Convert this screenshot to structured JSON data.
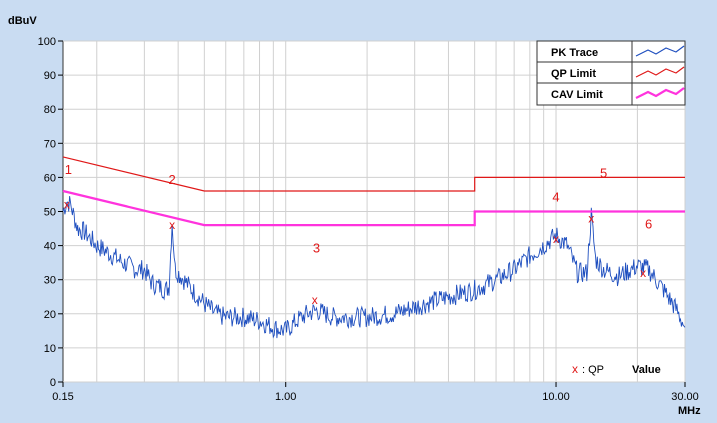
{
  "chart_data": {
    "type": "line",
    "ylabel": "dBuV",
    "xlabel": "MHz",
    "x_scale": "log",
    "xlim": [
      0.15,
      30
    ],
    "ylim": [
      0,
      100
    ],
    "y_ticks": [
      0,
      10,
      20,
      30,
      40,
      50,
      60,
      70,
      80,
      90,
      100
    ],
    "x_ticks": [
      {
        "value": 0.15,
        "label": "0.15"
      },
      {
        "value": 1,
        "label": "1.00"
      },
      {
        "value": 10,
        "label": "10.00"
      },
      {
        "value": 30,
        "label": "30.00"
      }
    ],
    "grid": true,
    "legend_position": "top-right",
    "legend": [
      "PK Trace",
      "QP Limit",
      "CAV Limit"
    ],
    "series": [
      {
        "name": "PK Trace",
        "color": "#1f4fbf",
        "points": [
          [
            0.15,
            50
          ],
          [
            0.155,
            53
          ],
          [
            0.16,
            52
          ],
          [
            0.17,
            45
          ],
          [
            0.18,
            44
          ],
          [
            0.2,
            40
          ],
          [
            0.22,
            38
          ],
          [
            0.25,
            35
          ],
          [
            0.28,
            33
          ],
          [
            0.3,
            33
          ],
          [
            0.32,
            29
          ],
          [
            0.34,
            28
          ],
          [
            0.36,
            27
          ],
          [
            0.37,
            28
          ],
          [
            0.38,
            47
          ],
          [
            0.39,
            33
          ],
          [
            0.42,
            30
          ],
          [
            0.45,
            27
          ],
          [
            0.5,
            23
          ],
          [
            0.55,
            20
          ],
          [
            0.6,
            19
          ],
          [
            0.7,
            19
          ],
          [
            0.8,
            18
          ],
          [
            0.9,
            16
          ],
          [
            1.0,
            15
          ],
          [
            1.1,
            18
          ],
          [
            1.2,
            20
          ],
          [
            1.3,
            21
          ],
          [
            1.5,
            19
          ],
          [
            2.0,
            19
          ],
          [
            2.5,
            20
          ],
          [
            3.0,
            22
          ],
          [
            4.0,
            25
          ],
          [
            5.0,
            27
          ],
          [
            6.0,
            30
          ],
          [
            7.0,
            33
          ],
          [
            8.0,
            37
          ],
          [
            9.0,
            40
          ],
          [
            10.0,
            43
          ],
          [
            11.0,
            40
          ],
          [
            12.0,
            32
          ],
          [
            13.0,
            32
          ],
          [
            13.5,
            49
          ],
          [
            14.0,
            36
          ],
          [
            15.0,
            33
          ],
          [
            17.0,
            31
          ],
          [
            20.0,
            34
          ],
          [
            22.0,
            33
          ],
          [
            25.0,
            27
          ],
          [
            28.0,
            21
          ],
          [
            30.0,
            16
          ]
        ]
      },
      {
        "name": "QP Limit",
        "color": "#e01818",
        "points": [
          [
            0.15,
            66
          ],
          [
            0.5,
            56
          ],
          [
            5,
            56
          ],
          [
            5,
            60
          ],
          [
            30,
            60
          ]
        ]
      },
      {
        "name": "CAV Limit",
        "color": "#ff33dd",
        "points": [
          [
            0.15,
            56
          ],
          [
            0.5,
            46
          ],
          [
            5,
            46
          ],
          [
            5,
            50
          ],
          [
            30,
            50
          ]
        ]
      }
    ],
    "qp_markers": [
      {
        "x": 0.155,
        "y": 52
      },
      {
        "x": 0.38,
        "y": 46
      },
      {
        "x": 1.28,
        "y": 24
      },
      {
        "x": 10.0,
        "y": 42
      },
      {
        "x": 13.5,
        "y": 48
      },
      {
        "x": 21.0,
        "y": 32
      }
    ],
    "annotations": [
      {
        "label": "1",
        "x": 0.157,
        "y": 61
      },
      {
        "label": "2",
        "x": 0.38,
        "y": 58
      },
      {
        "label": "3",
        "x": 1.3,
        "y": 38
      },
      {
        "label": "4",
        "x": 10.0,
        "y": 53
      },
      {
        "label": "5",
        "x": 15.0,
        "y": 60
      },
      {
        "label": "6",
        "x": 22.0,
        "y": 45
      }
    ],
    "footer_legend": {
      "symbol": "x",
      "text": ": QP",
      "value_label": "Value"
    }
  }
}
